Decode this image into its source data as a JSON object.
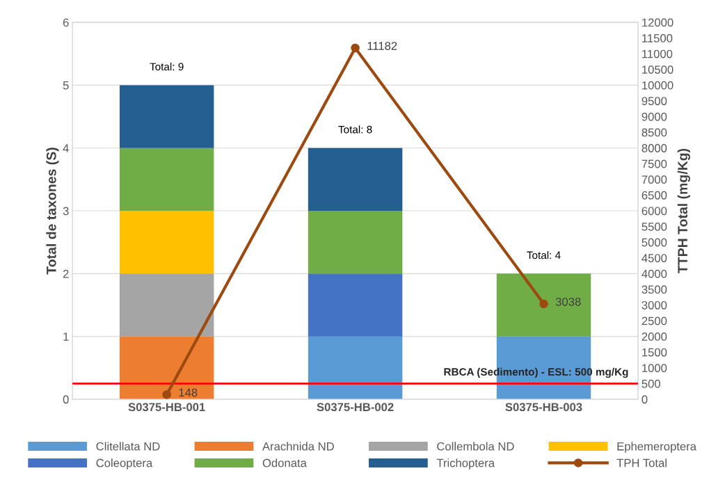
{
  "chart_data": {
    "type": "bar",
    "stacked": true,
    "ylabel": "Total de taxones (S)",
    "y2label": "TTPH Total (mg/Kg)",
    "categories": [
      "S0375-HB-001",
      "S0375-HB-002",
      "S0375-HB-003"
    ],
    "series": [
      {
        "name": "Clitellata ND",
        "color": "#5b9bd5",
        "values": [
          0,
          1,
          1
        ]
      },
      {
        "name": "Arachnida ND",
        "color": "#ed7d31",
        "values": [
          1,
          0,
          0
        ]
      },
      {
        "name": "Collembola ND",
        "color": "#a5a5a5",
        "values": [
          1,
          0,
          0
        ]
      },
      {
        "name": "Ephemeroptera",
        "color": "#ffc000",
        "values": [
          1,
          0,
          0
        ]
      },
      {
        "name": "Coleoptera",
        "color": "#4472c4",
        "values": [
          0,
          1,
          0
        ]
      },
      {
        "name": "Odonata",
        "color": "#70ad47",
        "values": [
          1,
          1,
          1
        ]
      },
      {
        "name": "Trichoptera",
        "color": "#255e91",
        "values": [
          1,
          1,
          0
        ]
      },
      {
        "name": "TPH Total",
        "type": "line",
        "axis": "y2",
        "color": "#9c4a0f",
        "marker": "circle",
        "values": [
          148,
          11182,
          3038
        ],
        "value_labels": [
          "148",
          "11182",
          "3038"
        ]
      }
    ],
    "totals": [
      "Total: 9",
      "Total: 8",
      "Total: 4"
    ],
    "ylim": [
      0,
      6
    ],
    "yticks": [
      0,
      1,
      2,
      3,
      4,
      5,
      6
    ],
    "y2lim": [
      0,
      12000
    ],
    "y2ticks": [
      0,
      500,
      1000,
      1500,
      2000,
      2500,
      3000,
      3500,
      4000,
      4500,
      5000,
      5500,
      6000,
      6500,
      7000,
      7500,
      8000,
      8500,
      9000,
      9500,
      10000,
      10500,
      11000,
      11500,
      12000
    ],
    "ref_lines": [
      {
        "axis": "y2",
        "value": 500,
        "label": "RBCA (Sedimento) - ESL: 500 mg/Kg",
        "color": "#ff0000"
      }
    ],
    "grid": "y",
    "legend": "bottom"
  }
}
